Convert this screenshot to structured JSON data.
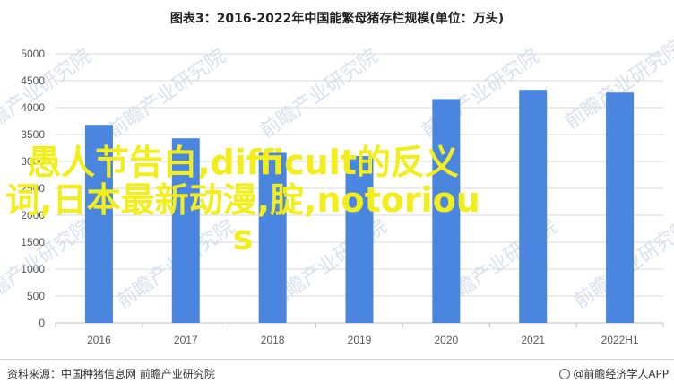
{
  "chart_data": {
    "type": "bar",
    "title": "图表3：2016-2022年中国能繁母猪存栏规模(单位：万头)",
    "categories": [
      "2016",
      "2017",
      "2018",
      "2019",
      "2020",
      "2021",
      "2022H1"
    ],
    "values": [
      3680,
      3430,
      3160,
      3100,
      4160,
      4330,
      4280
    ],
    "ylim": [
      0,
      5000
    ],
    "yticks": [
      0,
      500,
      1000,
      1500,
      2000,
      2500,
      3000,
      3500,
      4000,
      4500,
      5000
    ],
    "grid": true,
    "legend": "none",
    "bar_color": "#4a86e0"
  },
  "overlay_text": "愚人节告白,difficult的反义词,日本最新动漫,腚,notorious",
  "watermark_text": "前瞻产业研究院",
  "footer": {
    "source": "资料来源：中国种猪信息网 前瞻产业研究院",
    "brand": "@前瞻经济学人APP"
  }
}
